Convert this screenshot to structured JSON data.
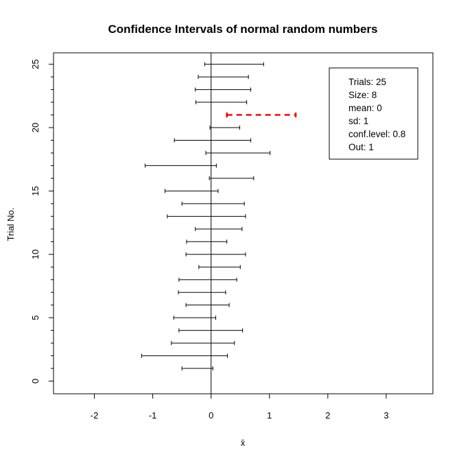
{
  "chart_data": {
    "type": "interval",
    "title": "Confidence Intervals of normal random numbers",
    "xlabel": "x̄",
    "ylabel": "Trial No.",
    "xlim": [
      -2.7,
      3.8
    ],
    "ylim": [
      -1,
      25.9
    ],
    "x_ticks": [
      -2,
      -1,
      0,
      1,
      2,
      3
    ],
    "x_tick_labels": [
      "-2",
      "-1",
      "0",
      "1",
      "2",
      "3"
    ],
    "y_ticks": [
      0,
      5,
      10,
      15,
      20,
      25
    ],
    "y_tick_labels": [
      "0",
      "5",
      "10",
      "15",
      "20",
      "25"
    ],
    "reference_line_x": 0,
    "interval_color": "#000000",
    "outlier_color": "#ff0000",
    "intervals": [
      {
        "trial": 1,
        "lower": -0.5,
        "upper": 0.03,
        "out": false
      },
      {
        "trial": 2,
        "lower": -1.19,
        "upper": 0.28,
        "out": false
      },
      {
        "trial": 3,
        "lower": -0.68,
        "upper": 0.4,
        "out": false
      },
      {
        "trial": 4,
        "lower": -0.55,
        "upper": 0.54,
        "out": false
      },
      {
        "trial": 5,
        "lower": -0.64,
        "upper": 0.08,
        "out": false
      },
      {
        "trial": 6,
        "lower": -0.43,
        "upper": 0.31,
        "out": false
      },
      {
        "trial": 7,
        "lower": -0.56,
        "upper": 0.25,
        "out": false
      },
      {
        "trial": 8,
        "lower": -0.55,
        "upper": 0.44,
        "out": false
      },
      {
        "trial": 9,
        "lower": -0.21,
        "upper": 0.5,
        "out": false
      },
      {
        "trial": 10,
        "lower": -0.43,
        "upper": 0.59,
        "out": false
      },
      {
        "trial": 11,
        "lower": -0.42,
        "upper": 0.27,
        "out": false
      },
      {
        "trial": 12,
        "lower": -0.27,
        "upper": 0.53,
        "out": false
      },
      {
        "trial": 13,
        "lower": -0.75,
        "upper": 0.59,
        "out": false
      },
      {
        "trial": 14,
        "lower": -0.5,
        "upper": 0.57,
        "out": false
      },
      {
        "trial": 15,
        "lower": -0.79,
        "upper": 0.12,
        "out": false
      },
      {
        "trial": 16,
        "lower": -0.03,
        "upper": 0.73,
        "out": false
      },
      {
        "trial": 17,
        "lower": -1.13,
        "upper": 0.09,
        "out": false
      },
      {
        "trial": 18,
        "lower": -0.09,
        "upper": 1.01,
        "out": false
      },
      {
        "trial": 19,
        "lower": -0.63,
        "upper": 0.68,
        "out": false
      },
      {
        "trial": 20,
        "lower": -0.02,
        "upper": 0.49,
        "out": false
      },
      {
        "trial": 21,
        "lower": 0.27,
        "upper": 1.45,
        "out": true
      },
      {
        "trial": 22,
        "lower": -0.26,
        "upper": 0.61,
        "out": false
      },
      {
        "trial": 23,
        "lower": -0.27,
        "upper": 0.68,
        "out": false
      },
      {
        "trial": 24,
        "lower": -0.22,
        "upper": 0.64,
        "out": false
      },
      {
        "trial": 25,
        "lower": -0.11,
        "upper": 0.9,
        "out": false
      }
    ],
    "legend": {
      "position": "top-right",
      "lines": [
        "Trials: 25",
        "Size: 8",
        "mean: 0",
        "sd: 1",
        "conf.level: 0.8",
        "Out: 1"
      ]
    }
  }
}
